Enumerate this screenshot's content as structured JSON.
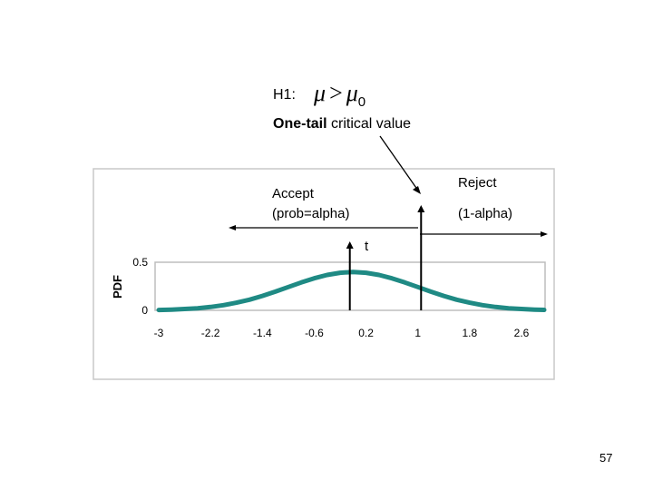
{
  "header": {
    "h1_label": "H1:",
    "h1_mu": "μ",
    "h1_op": ">",
    "h1_mu0": "μ",
    "h1_sub": "0",
    "subtitle_bold": "One-tail",
    "subtitle_rest": " critical value"
  },
  "annotations": {
    "accept_line1": "Accept",
    "accept_line2": "(prob=alpha)",
    "reject_line1": "Reject",
    "reject_line2": "(1-alpha)",
    "t_label": "t"
  },
  "chart_data": {
    "type": "area",
    "ylabel": "PDF",
    "xlabel": "",
    "x_ticks": [
      "-3",
      "-2.2",
      "-1.4",
      "-0.6",
      "0.2",
      "1",
      "1.8",
      "2.6"
    ],
    "x_tick_values": [
      -3,
      -2.2,
      -1.4,
      -0.6,
      0.2,
      1,
      1.8,
      2.6
    ],
    "y_ticks": [
      "0",
      "0.5"
    ],
    "y_tick_values": [
      0,
      0.5
    ],
    "xlim": [
      -3,
      2.95
    ],
    "ylim": [
      0,
      0.5
    ],
    "series": [
      {
        "x": [
          -3.0,
          -2.8,
          -2.6,
          -2.4,
          -2.2,
          -2.0,
          -1.8,
          -1.6,
          -1.4,
          -1.2,
          -1.0,
          -0.8,
          -0.6,
          -0.4,
          -0.2,
          0.0,
          0.2,
          0.4,
          0.6,
          0.8,
          1.0,
          1.2,
          1.4,
          1.6,
          1.8,
          2.0,
          2.2,
          2.4,
          2.6,
          2.8,
          2.95
        ],
        "y": [
          0.004,
          0.008,
          0.014,
          0.022,
          0.035,
          0.054,
          0.079,
          0.11,
          0.15,
          0.194,
          0.242,
          0.29,
          0.333,
          0.368,
          0.391,
          0.399,
          0.391,
          0.368,
          0.333,
          0.29,
          0.242,
          0.194,
          0.15,
          0.11,
          0.079,
          0.054,
          0.035,
          0.022,
          0.014,
          0.008,
          0.005
        ]
      }
    ],
    "t_value": -0.05,
    "critical_value": 1.05,
    "colors": {
      "curve": "#1f8a84",
      "frame": "#c8c8c8",
      "text": "#000000"
    },
    "grid": false,
    "legend": "none"
  },
  "footer": {
    "page_number": "57"
  }
}
